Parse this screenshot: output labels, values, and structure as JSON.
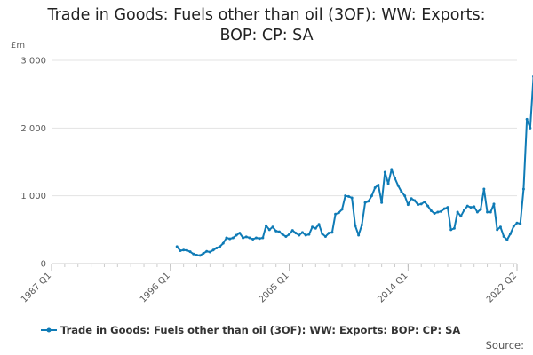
{
  "chart_data": {
    "type": "line",
    "title_lines": [
      "Trade in Goods: Fuels other than oil (3OF): WW: Exports:",
      "BOP: CP: SA"
    ],
    "ylabel": "£m",
    "ylim": [
      0,
      3000
    ],
    "y_ticks": [
      0,
      1000,
      2000,
      3000
    ],
    "y_tick_labels": [
      "0",
      "1 000",
      "2 000",
      "3 000"
    ],
    "x_tick_labels": [
      "1987 Q1",
      "1996 Q1",
      "2005 Q1",
      "2014 Q1",
      "2022 Q2"
    ],
    "x_range": [
      "1987 Q1",
      "2022 Q2"
    ],
    "grid": "horizontal",
    "legend_position": "bottom",
    "source_label": "Source:",
    "series": [
      {
        "name": "Trade in Goods: Fuels other than oil (3OF): WW: Exports: BOP: CP: SA",
        "color": "#0f7bb6",
        "start": "1996 Q3",
        "values": [
          250,
          190,
          200,
          195,
          175,
          140,
          125,
          120,
          150,
          180,
          170,
          200,
          230,
          250,
          300,
          380,
          365,
          380,
          420,
          450,
          380,
          395,
          380,
          360,
          380,
          370,
          380,
          560,
          500,
          540,
          480,
          470,
          430,
          400,
          430,
          490,
          450,
          420,
          460,
          420,
          430,
          540,
          520,
          580,
          440,
          400,
          450,
          460,
          730,
          750,
          800,
          1000,
          990,
          970,
          560,
          420,
          570,
          900,
          920,
          1000,
          1120,
          1160,
          900,
          1350,
          1180,
          1390,
          1260,
          1150,
          1060,
          1000,
          870,
          960,
          930,
          870,
          880,
          910,
          850,
          780,
          740,
          760,
          770,
          810,
          830,
          500,
          520,
          760,
          700,
          790,
          850,
          830,
          840,
          760,
          800,
          1100,
          760,
          760,
          880,
          500,
          540,
          400,
          350,
          440,
          550,
          600,
          590,
          1100,
          2130,
          2000,
          2760
        ]
      }
    ]
  }
}
